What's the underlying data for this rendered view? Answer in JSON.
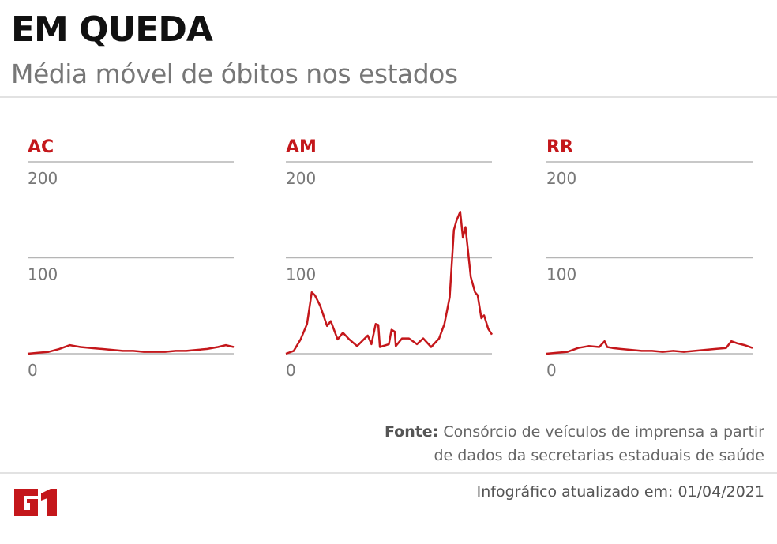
{
  "header": {
    "title": "EM QUEDA",
    "subtitle": "Média móvel de óbitos nos estados"
  },
  "footer": {
    "source_label": "Fonte:",
    "source_text": "Consórcio de veículos de imprensa a partir",
    "source_text2": "de dados da secretarias estaduais de saúde",
    "updated": "Infográfico atualizado em: 01/04/2021",
    "logo": "G1"
  },
  "colors": {
    "line": "#c4171b",
    "title_red": "#c4171b",
    "grid": "#b5b5b5"
  },
  "chart_data": [
    {
      "type": "line",
      "title": "AC",
      "ylim": [
        0,
        200
      ],
      "yticks": [
        0,
        100,
        200
      ],
      "grid": true,
      "x": [
        0,
        20,
        40,
        60,
        80,
        90,
        100,
        120,
        140,
        160,
        180,
        200,
        220,
        240,
        260,
        280,
        300,
        320,
        340,
        360,
        375,
        390
      ],
      "values": [
        0,
        1,
        2,
        5,
        9,
        8,
        7,
        6,
        5,
        4,
        3,
        3,
        2,
        2,
        2,
        3,
        3,
        4,
        5,
        7,
        9,
        7
      ]
    },
    {
      "type": "line",
      "title": "AM",
      "ylim": [
        0,
        200
      ],
      "yticks": [
        0,
        100,
        200
      ],
      "grid": true,
      "x": [
        0,
        15,
        28,
        40,
        49,
        55,
        65,
        78,
        85,
        98,
        108,
        120,
        135,
        155,
        162,
        170,
        175,
        178,
        195,
        200,
        206,
        208,
        220,
        233,
        248,
        260,
        275,
        290,
        300,
        310,
        318,
        323,
        330,
        335,
        340,
        350,
        358,
        363,
        370,
        375,
        383,
        390
      ],
      "values": [
        0,
        3,
        15,
        31,
        64,
        61,
        50,
        29,
        34,
        15,
        22,
        15,
        8,
        19,
        10,
        31,
        30,
        7,
        10,
        25,
        23,
        8,
        16,
        16,
        10,
        16,
        7,
        16,
        31,
        59,
        129,
        139,
        148,
        121,
        132,
        80,
        64,
        61,
        37,
        40,
        26,
        20
      ]
    },
    {
      "type": "line",
      "title": "RR",
      "ylim": [
        0,
        200
      ],
      "yticks": [
        0,
        100,
        200
      ],
      "grid": true,
      "x": [
        0,
        20,
        40,
        60,
        80,
        100,
        110,
        115,
        125,
        140,
        160,
        180,
        200,
        220,
        240,
        260,
        280,
        300,
        320,
        340,
        350,
        360,
        375,
        390
      ],
      "values": [
        0,
        1,
        2,
        6,
        8,
        7,
        13,
        7,
        6,
        5,
        4,
        3,
        3,
        2,
        3,
        2,
        3,
        4,
        5,
        6,
        13,
        11,
        9,
        6
      ]
    }
  ]
}
